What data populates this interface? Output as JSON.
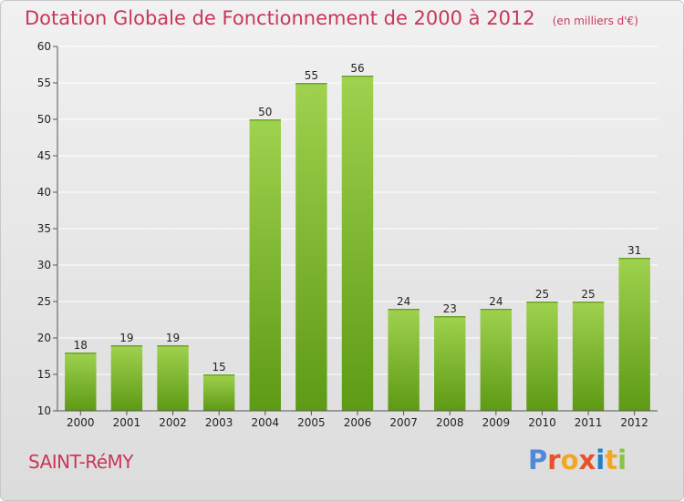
{
  "chart_data": {
    "type": "bar",
    "title": "Dotation Globale de Fonctionnement de 2000 à 2012",
    "unit_note": "(en milliers d'€)",
    "categories": [
      "2000",
      "2001",
      "2002",
      "2003",
      "2004",
      "2005",
      "2006",
      "2007",
      "2008",
      "2009",
      "2010",
      "2011",
      "2012"
    ],
    "values": [
      18,
      19,
      19,
      15,
      50,
      55,
      56,
      24,
      23,
      24,
      25,
      25,
      31
    ],
    "ylim": [
      10,
      60
    ],
    "yticks": [
      10,
      15,
      20,
      25,
      30,
      35,
      40,
      45,
      50,
      55,
      60
    ],
    "grid": "horizontal",
    "colors": {
      "bar_light": "#9fd24e",
      "bar_dark": "#5e9a15",
      "grid": "#ffffff",
      "axis": "#555555",
      "text": "#222222",
      "accent": "#c8375a"
    }
  },
  "footer": {
    "place": "SAINT-RéMY",
    "brand": "Proxiti"
  }
}
